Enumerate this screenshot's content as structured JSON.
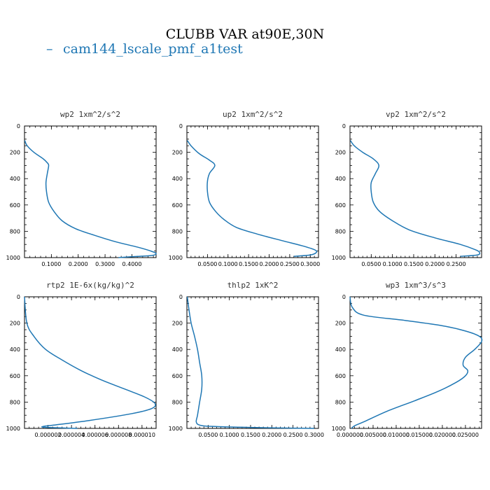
{
  "figure": {
    "suptitle": "CLUBB VAR at90E,30N",
    "legend_label": "cam144_lscale_pmf_a1test",
    "line_color": "#1f77b4"
  },
  "chart_data": [
    {
      "type": "line",
      "title": "wp2  1xm^2/s^2",
      "xlim": [
        0,
        0.49
      ],
      "ylim": [
        1000,
        0
      ],
      "yticks": [
        0,
        200,
        400,
        600,
        800,
        1000
      ],
      "xticks": [
        {
          "v": 0.1,
          "l": "0.1000"
        },
        {
          "v": 0.2,
          "l": "0.2000"
        },
        {
          "v": 0.3,
          "l": "0.3000"
        },
        {
          "v": 0.4,
          "l": "0.4000"
        }
      ],
      "series": [
        {
          "x": [
            0.001,
            0.01,
            0.035,
            0.07,
            0.085,
            0.09,
            0.085,
            0.08,
            0.082,
            0.09,
            0.11,
            0.14,
            0.19,
            0.26,
            0.34,
            0.42,
            0.47,
            0.49,
            0.47,
            0.4,
            0.35
          ],
          "y": [
            110,
            150,
            200,
            250,
            280,
            300,
            360,
            430,
            500,
            580,
            650,
            720,
            780,
            830,
            880,
            920,
            950,
            970,
            985,
            993,
            1000
          ]
        }
      ]
    },
    {
      "type": "line",
      "title": "up2  1xm^2/s^2",
      "xlim": [
        0,
        0.32
      ],
      "ylim": [
        1000,
        0
      ],
      "yticks": [
        0,
        200,
        400,
        600,
        800,
        1000
      ],
      "xticks": [
        {
          "v": 0.05,
          "l": "0.0500"
        },
        {
          "v": 0.1,
          "l": "0.1000"
        },
        {
          "v": 0.15,
          "l": "0.1500"
        },
        {
          "v": 0.2,
          "l": "0.2000"
        },
        {
          "v": 0.25,
          "l": "0.2500"
        },
        {
          "v": 0.3,
          "l": "0.3000"
        }
      ],
      "series": [
        {
          "x": [
            0.001,
            0.01,
            0.03,
            0.055,
            0.068,
            0.055,
            0.05,
            0.05,
            0.055,
            0.07,
            0.09,
            0.12,
            0.17,
            0.23,
            0.28,
            0.31,
            0.315,
            0.3,
            0.26
          ],
          "y": [
            110,
            150,
            210,
            260,
            300,
            360,
            420,
            500,
            580,
            650,
            710,
            770,
            820,
            870,
            910,
            940,
            960,
            980,
            990
          ]
        }
      ]
    },
    {
      "type": "line",
      "title": "vp2  1xm^2/s^2",
      "xlim": [
        0,
        0.31
      ],
      "ylim": [
        1000,
        0
      ],
      "yticks": [
        0,
        200,
        400,
        600,
        800,
        1000
      ],
      "xticks": [
        {
          "v": 0.05,
          "l": "0.0500"
        },
        {
          "v": 0.1,
          "l": "0.1000"
        },
        {
          "v": 0.15,
          "l": "0.1500"
        },
        {
          "v": 0.2,
          "l": "0.2000"
        },
        {
          "v": 0.25,
          "l": "0.2500"
        }
      ],
      "series": [
        {
          "x": [
            0.001,
            0.01,
            0.03,
            0.055,
            0.068,
            0.06,
            0.05,
            0.05,
            0.055,
            0.07,
            0.1,
            0.14,
            0.2,
            0.26,
            0.295,
            0.305,
            0.3,
            0.26
          ],
          "y": [
            110,
            150,
            200,
            250,
            300,
            360,
            430,
            500,
            580,
            650,
            720,
            790,
            850,
            900,
            940,
            960,
            980,
            990
          ]
        }
      ]
    },
    {
      "type": "line",
      "title": "rtp2  1E-6x(kg/kg)^2",
      "xlim": [
        0,
        1.12e-05
      ],
      "ylim": [
        1000,
        0
      ],
      "yticks": [
        0,
        200,
        400,
        600,
        800,
        1000
      ],
      "xticks": [
        {
          "v": 2e-06,
          "l": "0.000002"
        },
        {
          "v": 4e-06,
          "l": "0.000004"
        },
        {
          "v": 6e-06,
          "l": "0.000006"
        },
        {
          "v": 8e-06,
          "l": "0.000008"
        },
        {
          "v": 1e-05,
          "l": "0.000010"
        }
      ],
      "series": [
        {
          "x": [
            0,
            2e-07,
            8e-07,
            1.8e-06,
            3.2e-06,
            4.8e-06,
            6.5e-06,
            8.5e-06,
            1.02e-05,
            1.11e-05,
            1.08e-05,
            9e-06,
            5.5e-06,
            2.5e-06,
            1.6e-06,
            1.8e-06,
            4.5e-06
          ],
          "y": [
            0,
            200,
            300,
            400,
            480,
            560,
            630,
            700,
            760,
            810,
            850,
            890,
            940,
            975,
            985,
            992,
            1000
          ]
        }
      ]
    },
    {
      "type": "line",
      "title": "thlp2  1xK^2",
      "xlim": [
        0,
        0.31
      ],
      "ylim": [
        1000,
        0
      ],
      "yticks": [
        0,
        200,
        400,
        600,
        800,
        1000
      ],
      "xticks": [
        {
          "v": 0.05,
          "l": "0.0500"
        },
        {
          "v": 0.1,
          "l": "0.1000"
        },
        {
          "v": 0.15,
          "l": "0.1500"
        },
        {
          "v": 0.2,
          "l": "0.2000"
        },
        {
          "v": 0.25,
          "l": "0.2500"
        },
        {
          "v": 0.3,
          "l": "0.3000"
        }
      ],
      "series": [
        {
          "x": [
            0.001,
            0.005,
            0.01,
            0.018,
            0.025,
            0.03,
            0.035,
            0.035,
            0.03,
            0.025,
            0.022,
            0.03,
            0.06,
            0.15,
            0.25,
            0.3
          ],
          "y": [
            0,
            100,
            200,
            300,
            400,
            500,
            600,
            700,
            800,
            900,
            950,
            975,
            985,
            993,
            998,
            1000
          ]
        }
      ]
    },
    {
      "type": "line",
      "title": "wp3  1xm^3/s^3",
      "xlim": [
        0,
        0.0285
      ],
      "ylim": [
        1000,
        0
      ],
      "yticks": [
        0,
        200,
        400,
        600,
        800,
        1000
      ],
      "xticks": [
        {
          "v": 0,
          "l": "0.000000"
        },
        {
          "v": 0.005,
          "l": "0.005000"
        },
        {
          "v": 0.01,
          "l": "0.010000"
        },
        {
          "v": 0.015,
          "l": "0.015000"
        },
        {
          "v": 0.02,
          "l": "0.020000"
        },
        {
          "v": 0.025,
          "l": "0.025000"
        }
      ],
      "series": [
        {
          "x": [
            0,
            0.0005,
            0.003,
            0.012,
            0.02,
            0.025,
            0.028,
            0.0285,
            0.027,
            0.025,
            0.0245,
            0.0255,
            0.025,
            0.023,
            0.019,
            0.014,
            0.008,
            0.003,
            0.001,
            0.0003
          ],
          "y": [
            0,
            80,
            140,
            180,
            220,
            260,
            300,
            340,
            400,
            460,
            520,
            560,
            600,
            650,
            720,
            790,
            870,
            950,
            980,
            1000
          ]
        }
      ]
    }
  ]
}
